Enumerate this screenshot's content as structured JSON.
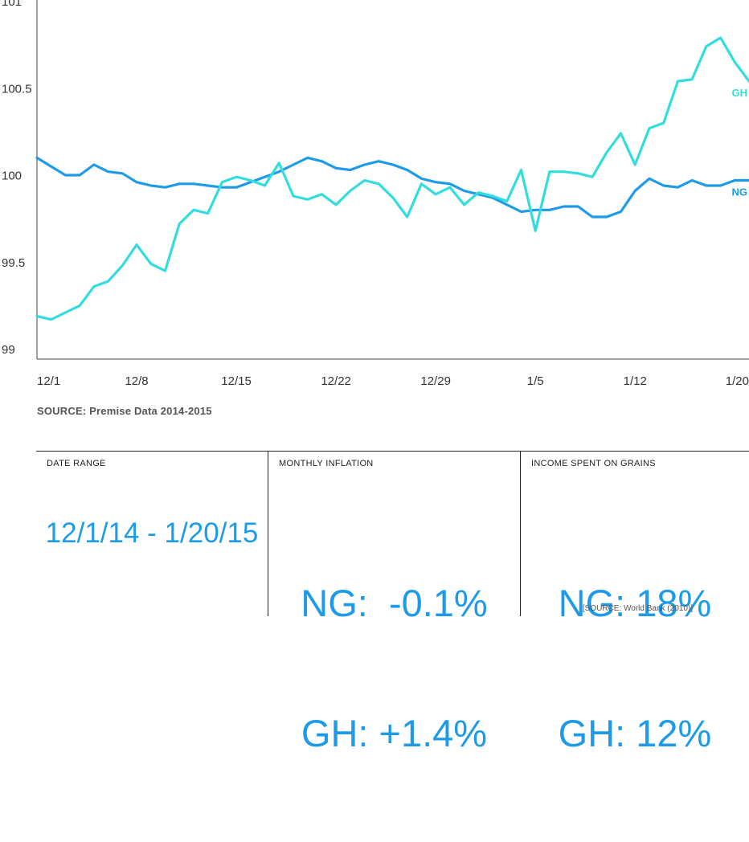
{
  "colors": {
    "NG": "#1e9be8",
    "GH": "#33dddd",
    "axis": "#444444",
    "accent": "#1e9be8"
  },
  "chart_data": {
    "type": "line",
    "title": "",
    "xlabel": "",
    "ylabel": "",
    "ylim": [
      99,
      101
    ],
    "yticks": [
      {
        "value": 99,
        "label": "99"
      },
      {
        "value": 99.5,
        "label": "99.5"
      },
      {
        "value": 100,
        "label": "100"
      },
      {
        "value": 100.5,
        "label": "100.5"
      },
      {
        "value": 101,
        "label": "101"
      }
    ],
    "xlim": [
      "2014-12-01",
      "2015-01-20"
    ],
    "xticks": [
      {
        "date": "2014-12-01",
        "label": "12/1"
      },
      {
        "date": "2014-12-08",
        "label": "12/8"
      },
      {
        "date": "2014-12-15",
        "label": "12/15"
      },
      {
        "date": "2014-12-22",
        "label": "12/22"
      },
      {
        "date": "2014-12-29",
        "label": "12/29"
      },
      {
        "date": "2015-01-05",
        "label": "1/5"
      },
      {
        "date": "2015-01-12",
        "label": "1/12"
      },
      {
        "date": "2015-01-20",
        "label": "1/20"
      }
    ],
    "grid": false,
    "legend": "line-end labels",
    "dates": [
      "2014-12-01",
      "2014-12-02",
      "2014-12-03",
      "2014-12-04",
      "2014-12-05",
      "2014-12-06",
      "2014-12-07",
      "2014-12-08",
      "2014-12-09",
      "2014-12-10",
      "2014-12-11",
      "2014-12-12",
      "2014-12-13",
      "2014-12-14",
      "2014-12-15",
      "2014-12-16",
      "2014-12-17",
      "2014-12-18",
      "2014-12-19",
      "2014-12-20",
      "2014-12-21",
      "2014-12-22",
      "2014-12-23",
      "2014-12-24",
      "2014-12-25",
      "2014-12-26",
      "2014-12-27",
      "2014-12-28",
      "2014-12-29",
      "2014-12-30",
      "2014-12-31",
      "2015-01-01",
      "2015-01-02",
      "2015-01-03",
      "2015-01-04",
      "2015-01-05",
      "2015-01-06",
      "2015-01-07",
      "2015-01-08",
      "2015-01-09",
      "2015-01-10",
      "2015-01-11",
      "2015-01-12",
      "2015-01-13",
      "2015-01-14",
      "2015-01-15",
      "2015-01-16",
      "2015-01-17",
      "2015-01-18",
      "2015-01-19",
      "2015-01-20"
    ],
    "series": [
      {
        "name": "NG",
        "values": [
          100.13,
          100.08,
          100.03,
          100.03,
          100.09,
          100.05,
          100.04,
          99.99,
          99.97,
          99.96,
          99.98,
          99.98,
          99.97,
          99.96,
          99.96,
          99.99,
          100.02,
          100.05,
          100.09,
          100.13,
          100.11,
          100.07,
          100.06,
          100.09,
          100.11,
          100.09,
          100.06,
          100.01,
          99.99,
          99.98,
          99.94,
          99.92,
          99.9,
          99.86,
          99.82,
          99.83,
          99.83,
          99.85,
          99.85,
          99.79,
          99.79,
          99.82,
          99.94,
          100.01,
          99.97,
          99.96,
          100.0,
          99.97,
          99.97,
          100.0,
          100.0
        ]
      },
      {
        "name": "GH",
        "values": [
          99.22,
          99.2,
          99.24,
          99.28,
          99.39,
          99.42,
          99.51,
          99.63,
          99.52,
          99.48,
          99.75,
          99.83,
          99.81,
          99.99,
          100.02,
          100.0,
          99.97,
          100.1,
          99.91,
          99.89,
          99.92,
          99.86,
          99.94,
          100.0,
          99.98,
          99.9,
          99.79,
          99.98,
          99.92,
          99.96,
          99.86,
          99.93,
          99.91,
          99.88,
          100.06,
          99.71,
          100.05,
          100.05,
          100.04,
          100.02,
          100.16,
          100.27,
          100.09,
          100.3,
          100.33,
          100.57,
          100.58,
          100.77,
          100.82,
          100.68,
          100.57
        ]
      }
    ]
  },
  "source_line": "SOURCE: Premise Data 2014-2015",
  "stats": {
    "date_range": {
      "label": "DATE RANGE",
      "value": "12/1/14 - 1/20/15"
    },
    "monthly_inflation": {
      "label": "MONTHLY INFLATION",
      "line1": "NG:  -0.1%",
      "line2": "GH: +1.4%"
    },
    "income_on_grains": {
      "label": "INCOME SPENT ON GRAINS",
      "line1": "NG: 18%",
      "line2": "GH: 12%",
      "note": "[SOURCE: World Bank (2010)]"
    }
  }
}
